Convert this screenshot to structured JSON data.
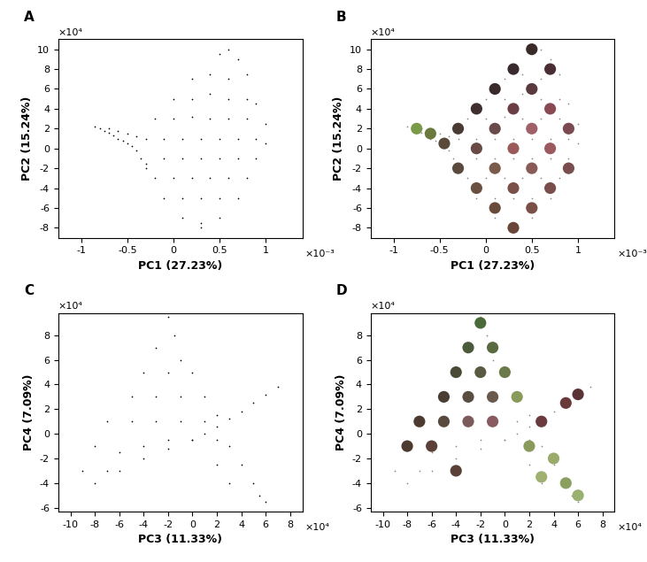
{
  "chart_data": [
    {
      "type": "scatter",
      "title": "A",
      "x_label": "PC1 (27.23%)",
      "y_label": "PC2 (15.24%)",
      "annotations": [
        "×10⁻³",
        "×10⁴"
      ],
      "xlim": [
        -1.25,
        1.4
      ],
      "xticks": [
        -1,
        -0.5,
        0,
        0.5,
        1
      ],
      "ylim": [
        -9,
        11
      ],
      "yticks": [
        -8,
        -6,
        -4,
        -2,
        0,
        2,
        4,
        6,
        8,
        10
      ],
      "series": [
        {
          "color": "#000000",
          "marker": ".",
          "x": [
            -0.85,
            -0.8,
            -0.75,
            -0.7,
            -0.65,
            -0.6,
            -0.55,
            -0.5,
            -0.45,
            -0.4,
            -0.6,
            -0.5,
            -0.7,
            -0.4,
            -0.35,
            -0.3,
            0.5,
            0.6,
            0.7,
            0.2,
            0.4,
            0.6,
            0.8,
            0,
            0.2,
            0.4,
            0.6,
            0.8,
            0.9,
            -0.2,
            0,
            0.2,
            0.4,
            0.6,
            0.8,
            1.0,
            -0.3,
            -0.1,
            0.1,
            0.3,
            0.5,
            0.7,
            0.9,
            1.0,
            -0.3,
            -0.1,
            0.1,
            0.3,
            0.5,
            0.7,
            0.9,
            -0.2,
            0,
            0.2,
            0.4,
            0.6,
            0.8,
            -0.1,
            0.1,
            0.3,
            0.5,
            0.7,
            0.1,
            0.3,
            0.5,
            0.3
          ],
          "y": [
            2.2,
            2.0,
            1.8,
            1.6,
            1.3,
            1.0,
            0.8,
            0.5,
            0.2,
            -0.2,
            1.8,
            1.5,
            2.0,
            1.2,
            -1,
            -2,
            9.5,
            10,
            9,
            7,
            7.5,
            7,
            7.5,
            5,
            5,
            5.5,
            5,
            5,
            4.5,
            3,
            3,
            3.2,
            3,
            3,
            3,
            2.5,
            1,
            1,
            1,
            1,
            1,
            1,
            1,
            0.5,
            -1.5,
            -1,
            -1,
            -1,
            -1,
            -1,
            -1,
            -3,
            -3,
            -3,
            -3,
            -3,
            -3,
            -5,
            -5,
            -5,
            -5,
            -5,
            -7,
            -7.5,
            -7,
            -8
          ]
        }
      ]
    },
    {
      "type": "scatter",
      "title": "B",
      "x_label": "PC1 (27.23%)",
      "y_label": "PC2 (15.24%)",
      "annotations": [
        "×10⁻³",
        "×10⁴"
      ],
      "xlim": [
        -1.25,
        1.4
      ],
      "xticks": [
        -1,
        -0.5,
        0,
        0.5,
        1
      ],
      "ylim": [
        -9,
        11
      ],
      "yticks": [
        -8,
        -6,
        -4,
        -2,
        0,
        2,
        4,
        6,
        8,
        10
      ],
      "series": [
        {
          "color": "#888888",
          "marker": ".",
          "x": [
            -0.85,
            -0.8,
            -0.75,
            -0.7,
            -0.65,
            -0.6,
            -0.55,
            -0.5,
            -0.45,
            -0.4,
            -0.6,
            -0.5,
            -0.7,
            -0.4,
            -0.35,
            -0.3,
            0.5,
            0.6,
            0.7,
            0.2,
            0.4,
            0.6,
            0.8,
            0,
            0.2,
            0.4,
            0.6,
            0.8,
            0.9,
            -0.2,
            0,
            0.2,
            0.4,
            0.6,
            0.8,
            1.0,
            -0.3,
            -0.1,
            0.1,
            0.3,
            0.5,
            0.7,
            0.9,
            1.0,
            -0.3,
            -0.1,
            0.1,
            0.3,
            0.5,
            0.7,
            0.9,
            -0.2,
            0,
            0.2,
            0.4,
            0.6,
            0.8,
            -0.1,
            0.1,
            0.3,
            0.5,
            0.7,
            0.1,
            0.3,
            0.5,
            0.3
          ],
          "y": [
            2.2,
            2.0,
            1.8,
            1.6,
            1.3,
            1.0,
            0.8,
            0.5,
            0.2,
            -0.2,
            1.8,
            1.5,
            2.0,
            1.2,
            -1,
            -2,
            9.5,
            10,
            9,
            7,
            7.5,
            7,
            7.5,
            5,
            5,
            5.5,
            5,
            5,
            4.5,
            3,
            3,
            3.2,
            3,
            3,
            3,
            2.5,
            1,
            1,
            1,
            1,
            1,
            1,
            1,
            0.5,
            -1.5,
            -1,
            -1,
            -1,
            -1,
            -1,
            -1,
            -3,
            -3,
            -3,
            -3,
            -3,
            -3,
            -5,
            -5,
            -5,
            -5,
            -5,
            -7,
            -7.5,
            -7,
            -8
          ]
        },
        {
          "marker": "o",
          "x": [
            -0.75,
            -0.6,
            -0.45,
            -0.3,
            -0.3,
            -0.1,
            -0.1,
            -0.1,
            0.1,
            0.1,
            0.1,
            0.1,
            0.3,
            0.3,
            0.3,
            0.3,
            0.3,
            0.5,
            0.5,
            0.5,
            0.5,
            0.5,
            0.7,
            0.7,
            0.7,
            0.7,
            0.9,
            0.9
          ],
          "y": [
            2,
            1.5,
            0.5,
            2,
            -2,
            4,
            0,
            -4,
            6,
            2,
            -2,
            -6,
            8,
            4,
            0,
            -4,
            -8,
            10,
            6,
            2,
            -2,
            -6,
            8,
            4,
            0,
            -4,
            2,
            -2
          ],
          "colors": [
            "#7a9a4a",
            "#6b7a3c",
            "#5a4a3a",
            "#4a3a34",
            "#5a4a3e",
            "#3e2e2e",
            "#6a4a44",
            "#6a5040",
            "#3a2a2c",
            "#6a4a4a",
            "#7a5a4a",
            "#6a4a3a",
            "#3a2a2e",
            "#6a3e44",
            "#9a5a5a",
            "#7a5048",
            "#6a4638",
            "#3a2a2a",
            "#5a3a3e",
            "#a06068",
            "#8a5a56",
            "#7a5046",
            "#4a2e34",
            "#8a4a54",
            "#9a5a60",
            "#7a4e4a",
            "#7a4a50",
            "#7a4e4e"
          ]
        }
      ]
    },
    {
      "type": "scatter",
      "title": "C",
      "x_label": "PC3 (11.33%)",
      "y_label": "PC4 (7.09%)",
      "annotations": [
        "×10⁴",
        "×10⁴"
      ],
      "xlim": [
        -11,
        9
      ],
      "xticks": [
        -10,
        -8,
        -6,
        -4,
        -2,
        0,
        2,
        4,
        6,
        8
      ],
      "ylim": [
        -6.3,
        9.8
      ],
      "yticks": [
        -6,
        -4,
        -2,
        0,
        2,
        4,
        6,
        8
      ],
      "series": [
        {
          "color": "#000000",
          "marker": ".",
          "x": [
            -2,
            -1.5,
            -3,
            -1,
            -4,
            -2,
            0,
            -5,
            -3,
            -1,
            1,
            -7,
            -5,
            -3,
            -1,
            1,
            2,
            -8,
            -6,
            -4,
            -2,
            0,
            2,
            3,
            -9,
            -7,
            2,
            4,
            3,
            5,
            6,
            5.5,
            -8,
            -6,
            -4,
            -2,
            0,
            1,
            2,
            3,
            4,
            5,
            6,
            7
          ],
          "y": [
            9.5,
            8,
            7,
            6,
            5,
            5,
            5,
            3,
            3,
            3,
            3,
            1,
            1,
            1,
            1,
            1,
            1.5,
            -1,
            -1.5,
            -1,
            -0.5,
            -0.5,
            -0.5,
            -1,
            -3,
            -3,
            -2.5,
            -2.5,
            -4,
            -4,
            -5.5,
            -5,
            -4,
            -3,
            -2,
            -1.2,
            -0.5,
            0,
            0.6,
            1.2,
            1.8,
            2.5,
            3.2,
            3.8
          ]
        }
      ]
    },
    {
      "type": "scatter",
      "title": "D",
      "x_label": "PC3 (11.33%)",
      "y_label": "PC4 (7.09%)",
      "annotations": [
        "×10⁴",
        "×10⁴"
      ],
      "xlim": [
        -11,
        9
      ],
      "xticks": [
        -10,
        -8,
        -6,
        -4,
        -2,
        0,
        2,
        4,
        6,
        8
      ],
      "ylim": [
        -6.3,
        9.8
      ],
      "yticks": [
        -6,
        -4,
        -2,
        0,
        2,
        4,
        6,
        8
      ],
      "series": [
        {
          "color": "#888888",
          "marker": ".",
          "x": [
            -2,
            -1.5,
            -3,
            -1,
            -4,
            -2,
            0,
            -5,
            -3,
            -1,
            1,
            -7,
            -5,
            -3,
            -1,
            1,
            2,
            -8,
            -6,
            -4,
            -2,
            0,
            2,
            3,
            -9,
            -7,
            2,
            4,
            3,
            5,
            6,
            5.5,
            -8,
            -6,
            -4,
            -2,
            0,
            1,
            2,
            3,
            4,
            5,
            6,
            7
          ],
          "y": [
            9.5,
            8,
            7,
            6,
            5,
            5,
            5,
            3,
            3,
            3,
            3,
            1,
            1,
            1,
            1,
            1,
            1.5,
            -1,
            -1.5,
            -1,
            -0.5,
            -0.5,
            -0.5,
            -1,
            -3,
            -3,
            -2.5,
            -2.5,
            -4,
            -4,
            -5.5,
            -5,
            -4,
            -3,
            -2,
            -1.2,
            -0.5,
            0,
            0.6,
            1.2,
            1.8,
            2.5,
            3.2,
            3.8
          ]
        },
        {
          "marker": "o",
          "x": [
            -2,
            -3,
            -1,
            -4,
            -2,
            0,
            -5,
            -3,
            -1,
            1,
            -7,
            -5,
            -3,
            -1,
            -8,
            -6,
            3,
            5,
            6,
            -4,
            2,
            4,
            3,
            5,
            6
          ],
          "y": [
            9,
            7,
            7,
            5,
            5,
            5,
            3,
            3,
            3,
            3,
            1,
            1,
            1,
            1,
            -1,
            -1,
            1,
            2.5,
            3.2,
            -3,
            -1,
            -2,
            -3.5,
            -4,
            -5
          ],
          "colors": [
            "#4a6a3a",
            "#4a5a3a",
            "#5a6a40",
            "#4a4a36",
            "#5a5a44",
            "#6a7a4a",
            "#4a3e32",
            "#5a4e40",
            "#6a5a4e",
            "#8a9a5a",
            "#4a3a30",
            "#5a4a3e",
            "#7a5a5a",
            "#8a5a62",
            "#4a3a30",
            "#5a4036",
            "#6a3a3e",
            "#6a3a3a",
            "#5a3434",
            "#5a4036",
            "#8a9a5a",
            "#9aaa6a",
            "#a0b070",
            "#8aa060",
            "#9ab070"
          ]
        }
      ]
    }
  ]
}
